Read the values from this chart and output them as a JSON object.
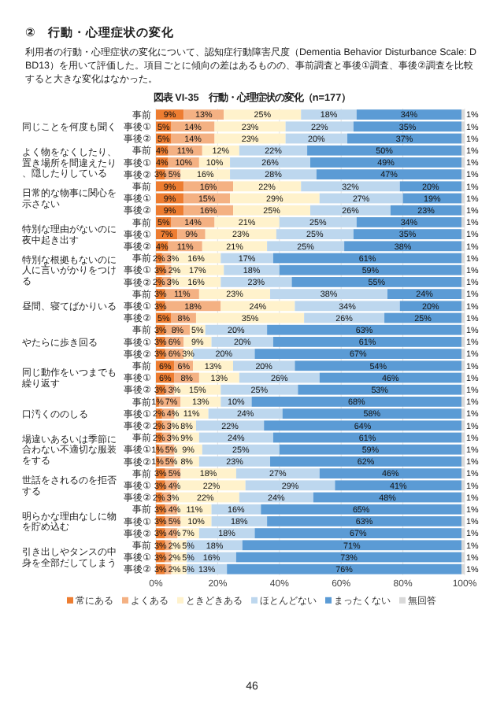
{
  "chart_data": [
    {
      "type": "bar",
      "orientation": "horizontal",
      "stacked": true,
      "grid": "x",
      "title": "図表 VI-35　行動・心理症状の変化（n=177）",
      "annotations": [
        "②　行動・心理症状の変化",
        "利用者の行動・心理症状の変化について、認知症行動障害尺度（Dementia Behavior Disturbance Scale: DBD13）を用いて評価した。項目ごとに傾向の差はあるものの、事前調査と事後①調査、事後②調査を比較すると大きな変化はなかった。",
        "46"
      ],
      "ylabel": "同じことを何度も聞く",
      "categories": [
        "事前",
        "事後①",
        "事後②"
      ],
      "xlim": [
        0,
        100
      ],
      "xticks": [
        0,
        20,
        40,
        60,
        80,
        100
      ],
      "tick_labels": "y",
      "series": [
        {
          "color": "#ed7d31",
          "values": [
            9,
            5,
            5
          ],
          "value_labels": [
            "9%",
            "5%",
            "5%"
          ]
        },
        {
          "color": "#f4b183",
          "values": [
            13,
            14,
            14
          ],
          "value_labels": [
            "13%",
            "14%",
            "14%"
          ]
        },
        {
          "color": "#fff2cc",
          "values": [
            25,
            23,
            23
          ],
          "value_labels": [
            "25%",
            "23%",
            "23%"
          ]
        },
        {
          "color": "#bdd7ee",
          "values": [
            18,
            22,
            20
          ],
          "value_labels": [
            "18%",
            "22%",
            "20%"
          ]
        },
        {
          "color": "#5b9bd5",
          "values": [
            34,
            35,
            37
          ],
          "value_labels": [
            "34%",
            "35%",
            "37%"
          ]
        },
        {
          "color": "#d9d9d9",
          "values": [
            1,
            1,
            1
          ],
          "value_labels": [
            "1%",
            "1%",
            "1%"
          ]
        }
      ]
    },
    {
      "type": "bar",
      "orientation": "horizontal",
      "stacked": true,
      "grid": "x",
      "ylabel": "よく物をなくしたり、置き場所を間違えたり、隠したりしている",
      "categories": [
        "事前",
        "事後①",
        "事後②"
      ],
      "xlim": [
        0,
        100
      ],
      "xticks": [
        0,
        20,
        40,
        60,
        80,
        100
      ],
      "tick_labels": "y",
      "series": [
        {
          "color": "#ed7d31",
          "values": [
            4,
            4,
            3
          ],
          "value_labels": [
            "4%",
            "4%",
            "3%"
          ]
        },
        {
          "color": "#f4b183",
          "values": [
            11,
            10,
            5
          ],
          "value_labels": [
            "11%",
            "10%",
            "5%"
          ]
        },
        {
          "color": "#fff2cc",
          "values": [
            12,
            10,
            16
          ],
          "value_labels": [
            "12%",
            "10%",
            "16%"
          ]
        },
        {
          "color": "#bdd7ee",
          "values": [
            22,
            26,
            28
          ],
          "value_labels": [
            "22%",
            "26%",
            "28%"
          ]
        },
        {
          "color": "#5b9bd5",
          "values": [
            50,
            49,
            47
          ],
          "value_labels": [
            "50%",
            "49%",
            "47%"
          ]
        },
        {
          "color": "#d9d9d9",
          "values": [
            1,
            1,
            1
          ],
          "value_labels": [
            "1%",
            "1%",
            "1%"
          ]
        }
      ]
    },
    {
      "type": "bar",
      "orientation": "horizontal",
      "stacked": true,
      "grid": "x",
      "ylabel": "日常的な物事に関心を示さない",
      "categories": [
        "事前",
        "事後①",
        "事後②"
      ],
      "xlim": [
        0,
        100
      ],
      "xticks": [
        0,
        20,
        40,
        60,
        80,
        100
      ],
      "tick_labels": "y",
      "series": [
        {
          "color": "#ed7d31",
          "values": [
            9,
            9,
            9
          ],
          "value_labels": [
            "9%",
            "9%",
            "9%"
          ]
        },
        {
          "color": "#f4b183",
          "values": [
            16,
            15,
            16
          ],
          "value_labels": [
            "16%",
            "15%",
            "16%"
          ]
        },
        {
          "color": "#fff2cc",
          "values": [
            22,
            29,
            25
          ],
          "value_labels": [
            "22%",
            "29%",
            "25%"
          ]
        },
        {
          "color": "#bdd7ee",
          "values": [
            32,
            27,
            26
          ],
          "value_labels": [
            "32%",
            "27%",
            "26%"
          ]
        },
        {
          "color": "#5b9bd5",
          "values": [
            20,
            19,
            23
          ],
          "value_labels": [
            "20%",
            "19%",
            "23%"
          ]
        },
        {
          "color": "#d9d9d9",
          "values": [
            1,
            1,
            1
          ],
          "value_labels": [
            "1%",
            "1%",
            "1%"
          ]
        }
      ]
    },
    {
      "type": "bar",
      "orientation": "horizontal",
      "stacked": true,
      "grid": "x",
      "ylabel": "特別な理由がないのに夜中起き出す",
      "categories": [
        "事前",
        "事後①",
        "事後②"
      ],
      "xlim": [
        0,
        100
      ],
      "xticks": [
        0,
        20,
        40,
        60,
        80,
        100
      ],
      "tick_labels": "y",
      "series": [
        {
          "color": "#ed7d31",
          "values": [
            5,
            7,
            4
          ],
          "value_labels": [
            "5%",
            "7%",
            "4%"
          ]
        },
        {
          "color": "#f4b183",
          "values": [
            14,
            9,
            11
          ],
          "value_labels": [
            "14%",
            "9%",
            "11%"
          ]
        },
        {
          "color": "#fff2cc",
          "values": [
            21,
            23,
            21
          ],
          "value_labels": [
            "21%",
            "23%",
            "21%"
          ]
        },
        {
          "color": "#bdd7ee",
          "values": [
            25,
            25,
            25
          ],
          "value_labels": [
            "25%",
            "25%",
            "25%"
          ]
        },
        {
          "color": "#5b9bd5",
          "values": [
            34,
            35,
            38
          ],
          "value_labels": [
            "34%",
            "35%",
            "38%"
          ]
        },
        {
          "color": "#d9d9d9",
          "values": [
            1,
            1,
            1
          ],
          "value_labels": [
            "1%",
            "1%",
            "1%"
          ]
        }
      ]
    },
    {
      "type": "bar",
      "orientation": "horizontal",
      "stacked": true,
      "grid": "x",
      "ylabel": "特別な根拠もないのに人に言いがかりをつける",
      "categories": [
        "事前",
        "事後①",
        "事後②"
      ],
      "xlim": [
        0,
        100
      ],
      "xticks": [
        0,
        20,
        40,
        60,
        80,
        100
      ],
      "tick_labels": "y",
      "series": [
        {
          "color": "#ed7d31",
          "values": [
            2,
            3,
            2
          ],
          "value_labels": [
            "2%",
            "3%",
            "2%"
          ]
        },
        {
          "color": "#f4b183",
          "values": [
            3,
            2,
            3
          ],
          "value_labels": [
            "3%",
            "2%",
            "3%"
          ]
        },
        {
          "color": "#fff2cc",
          "values": [
            16,
            17,
            16
          ],
          "value_labels": [
            "16%",
            "17%",
            "16%"
          ]
        },
        {
          "color": "#bdd7ee",
          "values": [
            17,
            18,
            23
          ],
          "value_labels": [
            "17%",
            "18%",
            "23%"
          ]
        },
        {
          "color": "#5b9bd5",
          "values": [
            61,
            59,
            55
          ],
          "value_labels": [
            "61%",
            "59%",
            "55%"
          ]
        },
        {
          "color": "#d9d9d9",
          "values": [
            1,
            1,
            1
          ],
          "value_labels": [
            "1%",
            "1%",
            "1%"
          ]
        }
      ]
    },
    {
      "type": "bar",
      "orientation": "horizontal",
      "stacked": true,
      "grid": "x",
      "ylabel": "昼間、寝てばかりいる",
      "categories": [
        "事前",
        "事後①",
        "事後②"
      ],
      "xlim": [
        0,
        100
      ],
      "xticks": [
        0,
        20,
        40,
        60,
        80,
        100
      ],
      "tick_labels": "y",
      "series": [
        {
          "color": "#ed7d31",
          "values": [
            3,
            3,
            5
          ],
          "value_labels": [
            "3%",
            "3%",
            "5%"
          ]
        },
        {
          "color": "#f4b183",
          "values": [
            11,
            18,
            8
          ],
          "value_labels": [
            "11%",
            "18%",
            "8%"
          ]
        },
        {
          "color": "#fff2cc",
          "values": [
            23,
            24,
            35
          ],
          "value_labels": [
            "23%",
            "24%",
            "35%"
          ]
        },
        {
          "color": "#bdd7ee",
          "values": [
            38,
            34,
            26
          ],
          "value_labels": [
            "38%",
            "34%",
            "26%"
          ]
        },
        {
          "color": "#5b9bd5",
          "values": [
            24,
            20,
            25
          ],
          "value_labels": [
            "24%",
            "20%",
            "25%"
          ]
        },
        {
          "color": "#d9d9d9",
          "values": [
            1,
            1,
            1
          ],
          "value_labels": [
            "1%",
            "1%",
            "1%"
          ]
        }
      ]
    },
    {
      "type": "bar",
      "orientation": "horizontal",
      "stacked": true,
      "grid": "x",
      "ylabel": "やたらに歩き回る",
      "categories": [
        "事前",
        "事後①",
        "事後②"
      ],
      "xlim": [
        0,
        100
      ],
      "xticks": [
        0,
        20,
        40,
        60,
        80,
        100
      ],
      "tick_labels": "y",
      "series": [
        {
          "color": "#ed7d31",
          "values": [
            3,
            3,
            3
          ],
          "value_labels": [
            "3%",
            "3%",
            "3%"
          ]
        },
        {
          "color": "#f4b183",
          "values": [
            8,
            6,
            6
          ],
          "value_labels": [
            "8%",
            "6%",
            "6%"
          ]
        },
        {
          "color": "#fff2cc",
          "values": [
            5,
            9,
            3
          ],
          "value_labels": [
            "5%",
            "9%",
            "3%"
          ]
        },
        {
          "color": "#bdd7ee",
          "values": [
            20,
            20,
            20
          ],
          "value_labels": [
            "20%",
            "20%",
            "20%"
          ]
        },
        {
          "color": "#5b9bd5",
          "values": [
            63,
            61,
            67
          ],
          "value_labels": [
            "63%",
            "61%",
            "67%"
          ]
        },
        {
          "color": "#d9d9d9",
          "values": [
            1,
            1,
            1
          ],
          "value_labels": [
            "1%",
            "1%",
            "1%"
          ]
        }
      ]
    },
    {
      "type": "bar",
      "orientation": "horizontal",
      "stacked": true,
      "grid": "x",
      "ylabel": "同じ動作をいつまでも繰り返す",
      "categories": [
        "事前",
        "事後①",
        "事後②"
      ],
      "xlim": [
        0,
        100
      ],
      "xticks": [
        0,
        20,
        40,
        60,
        80,
        100
      ],
      "tick_labels": "y",
      "series": [
        {
          "color": "#ed7d31",
          "values": [
            6,
            6,
            3
          ],
          "value_labels": [
            "6%",
            "6%",
            "3%"
          ]
        },
        {
          "color": "#f4b183",
          "values": [
            6,
            8,
            3
          ],
          "value_labels": [
            "6%",
            "8%",
            "3%"
          ]
        },
        {
          "color": "#fff2cc",
          "values": [
            13,
            13,
            15
          ],
          "value_labels": [
            "13%",
            "13%",
            "15%"
          ]
        },
        {
          "color": "#bdd7ee",
          "values": [
            20,
            26,
            25
          ],
          "value_labels": [
            "20%",
            "26%",
            "25%"
          ]
        },
        {
          "color": "#5b9bd5",
          "values": [
            54,
            46,
            53
          ],
          "value_labels": [
            "54%",
            "46%",
            "53%"
          ]
        },
        {
          "color": "#d9d9d9",
          "values": [
            1,
            1,
            1
          ],
          "value_labels": [
            "1%",
            "1%",
            "1%"
          ]
        }
      ]
    },
    {
      "type": "bar",
      "orientation": "horizontal",
      "stacked": true,
      "grid": "x",
      "ylabel": "口汚くののしる",
      "categories": [
        "事前",
        "事後①",
        "事後②"
      ],
      "xlim": [
        0,
        100
      ],
      "xticks": [
        0,
        20,
        40,
        60,
        80,
        100
      ],
      "tick_labels": "y",
      "series": [
        {
          "color": "#ed7d31",
          "values": [
            1,
            2,
            2
          ],
          "value_labels": [
            "1%",
            "2%",
            "2%"
          ]
        },
        {
          "color": "#f4b183",
          "values": [
            7,
            4,
            3
          ],
          "value_labels": [
            "7%",
            "4%",
            "3%"
          ]
        },
        {
          "color": "#fff2cc",
          "values": [
            13,
            11,
            8
          ],
          "value_labels": [
            "13%",
            "11%",
            "8%"
          ]
        },
        {
          "color": "#bdd7ee",
          "values": [
            10,
            24,
            22
          ],
          "value_labels": [
            "10%",
            "24%",
            "22%"
          ]
        },
        {
          "color": "#5b9bd5",
          "values": [
            68,
            58,
            64
          ],
          "value_labels": [
            "68%",
            "58%",
            "64%"
          ]
        },
        {
          "color": "#d9d9d9",
          "values": [
            1,
            1,
            1
          ],
          "value_labels": [
            "1%",
            "1%",
            "1%"
          ]
        }
      ]
    },
    {
      "type": "bar",
      "orientation": "horizontal",
      "stacked": true,
      "grid": "x",
      "ylabel": "場違いあるいは季節に合わない不適切な服装をする",
      "categories": [
        "事前",
        "事後①",
        "事後②"
      ],
      "xlim": [
        0,
        100
      ],
      "xticks": [
        0,
        20,
        40,
        60,
        80,
        100
      ],
      "tick_labels": "y",
      "series": [
        {
          "color": "#ed7d31",
          "values": [
            2,
            1,
            1
          ],
          "value_labels": [
            "2%",
            "1%",
            "1%"
          ]
        },
        {
          "color": "#f4b183",
          "values": [
            3,
            5,
            5
          ],
          "value_labels": [
            "3%",
            "5%",
            "5%"
          ]
        },
        {
          "color": "#fff2cc",
          "values": [
            9,
            9,
            8
          ],
          "value_labels": [
            "9%",
            "9%",
            "8%"
          ]
        },
        {
          "color": "#bdd7ee",
          "values": [
            24,
            25,
            23
          ],
          "value_labels": [
            "24%",
            "25%",
            "23%"
          ]
        },
        {
          "color": "#5b9bd5",
          "values": [
            61,
            59,
            62
          ],
          "value_labels": [
            "61%",
            "59%",
            "62%"
          ]
        },
        {
          "color": "#d9d9d9",
          "values": [
            1,
            1,
            1
          ],
          "value_labels": [
            "1%",
            "1%",
            "1%"
          ]
        }
      ]
    },
    {
      "type": "bar",
      "orientation": "horizontal",
      "stacked": true,
      "grid": "x",
      "ylabel": "世話をされるのを拒否する",
      "categories": [
        "事前",
        "事後①",
        "事後②"
      ],
      "xlim": [
        0,
        100
      ],
      "xticks": [
        0,
        20,
        40,
        60,
        80,
        100
      ],
      "tick_labels": "y",
      "series": [
        {
          "color": "#ed7d31",
          "values": [
            3,
            3,
            2
          ],
          "value_labels": [
            "3%",
            "3%",
            "2%"
          ]
        },
        {
          "color": "#f4b183",
          "values": [
            5,
            4,
            3
          ],
          "value_labels": [
            "5%",
            "4%",
            "3%"
          ]
        },
        {
          "color": "#fff2cc",
          "values": [
            18,
            22,
            22
          ],
          "value_labels": [
            "18%",
            "22%",
            "22%"
          ]
        },
        {
          "color": "#bdd7ee",
          "values": [
            27,
            29,
            24
          ],
          "value_labels": [
            "27%",
            "29%",
            "24%"
          ]
        },
        {
          "color": "#5b9bd5",
          "values": [
            46,
            41,
            48
          ],
          "value_labels": [
            "46%",
            "41%",
            "48%"
          ]
        },
        {
          "color": "#d9d9d9",
          "values": [
            1,
            1,
            1
          ],
          "value_labels": [
            "1%",
            "1%",
            "1%"
          ]
        }
      ]
    },
    {
      "type": "bar",
      "orientation": "horizontal",
      "stacked": true,
      "grid": "x",
      "ylabel": "明らかな理由なしに物を貯め込む",
      "categories": [
        "事前",
        "事後①",
        "事後②"
      ],
      "xlim": [
        0,
        100
      ],
      "xticks": [
        0,
        20,
        40,
        60,
        80,
        100
      ],
      "tick_labels": "y",
      "series": [
        {
          "color": "#ed7d31",
          "values": [
            3,
            3,
            3
          ],
          "value_labels": [
            "3%",
            "3%",
            "3%"
          ]
        },
        {
          "color": "#f4b183",
          "values": [
            4,
            5,
            4
          ],
          "value_labels": [
            "4%",
            "5%",
            "4%"
          ]
        },
        {
          "color": "#fff2cc",
          "values": [
            11,
            10,
            7
          ],
          "value_labels": [
            "11%",
            "10%",
            "7%"
          ]
        },
        {
          "color": "#bdd7ee",
          "values": [
            16,
            18,
            18
          ],
          "value_labels": [
            "16%",
            "18%",
            "18%"
          ]
        },
        {
          "color": "#5b9bd5",
          "values": [
            65,
            63,
            67
          ],
          "value_labels": [
            "65%",
            "63%",
            "67%"
          ]
        },
        {
          "color": "#d9d9d9",
          "values": [
            1,
            1,
            1
          ],
          "value_labels": [
            "1%",
            "1%",
            "1%"
          ]
        }
      ]
    },
    {
      "type": "bar",
      "orientation": "horizontal",
      "stacked": true,
      "grid": "x",
      "ylabel": "引き出しやタンスの中身を全部だしてしまう",
      "categories": [
        "事前",
        "事後①",
        "事後②"
      ],
      "xlim": [
        0,
        100
      ],
      "xticks": [
        {
          "value": 0,
          "label": "0%"
        },
        {
          "value": 20,
          "label": "20%"
        },
        {
          "value": 40,
          "label": "40%"
        },
        {
          "value": 60,
          "label": "60%"
        },
        {
          "value": 80,
          "label": "80%"
        },
        {
          "value": 100,
          "label": "100%"
        }
      ],
      "legend": "bottom",
      "series": [
        {
          "name": "常にある",
          "color": "#ed7d31",
          "values": [
            3,
            3,
            3
          ],
          "value_labels": [
            "3%",
            "3%",
            "3%"
          ]
        },
        {
          "name": "よくある",
          "color": "#f4b183",
          "values": [
            2,
            2,
            2
          ],
          "value_labels": [
            "2%",
            "2%",
            "2%"
          ]
        },
        {
          "name": "ときどきある",
          "color": "#fff2cc",
          "values": [
            5,
            5,
            5
          ],
          "value_labels": [
            "5%",
            "5%",
            "5%"
          ]
        },
        {
          "name": "ほとんどない",
          "color": "#bdd7ee",
          "values": [
            18,
            16,
            13
          ],
          "value_labels": [
            "18%",
            "16%",
            "13%"
          ]
        },
        {
          "name": "まったくない",
          "color": "#5b9bd5",
          "values": [
            71,
            73,
            76
          ],
          "value_labels": [
            "71%",
            "73%",
            "76%"
          ]
        },
        {
          "name": "無回答",
          "color": "#d9d9d9",
          "values": [
            1,
            1,
            1
          ],
          "value_labels": [
            "1%",
            "1%",
            "1%"
          ]
        }
      ]
    }
  ]
}
